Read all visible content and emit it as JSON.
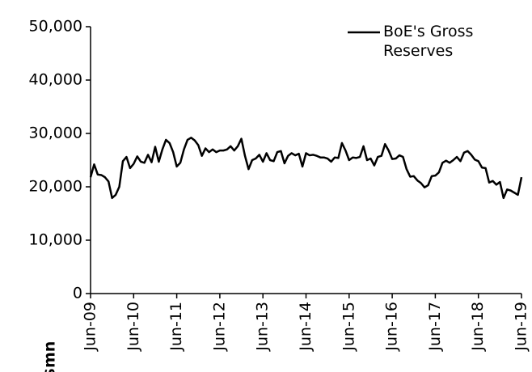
{
  "chart_data": {
    "type": "line",
    "y_label": "$mn",
    "categories": [
      "Jun-09",
      null,
      null,
      null,
      null,
      null,
      null,
      null,
      null,
      null,
      null,
      null,
      "Jun-10",
      null,
      null,
      null,
      null,
      null,
      null,
      null,
      null,
      null,
      null,
      null,
      "Jun-11",
      null,
      null,
      null,
      null,
      null,
      null,
      null,
      null,
      null,
      null,
      null,
      "Jun-12",
      null,
      null,
      null,
      null,
      null,
      null,
      null,
      null,
      null,
      null,
      null,
      "Jun-13",
      null,
      null,
      null,
      null,
      null,
      null,
      null,
      null,
      null,
      null,
      null,
      "Jun-14",
      null,
      null,
      null,
      null,
      null,
      null,
      null,
      null,
      null,
      null,
      null,
      "Jun-15",
      null,
      null,
      null,
      null,
      null,
      null,
      null,
      null,
      null,
      null,
      null,
      "Jun-16",
      null,
      null,
      null,
      null,
      null,
      null,
      null,
      null,
      null,
      null,
      null,
      "Jun-17",
      null,
      null,
      null,
      null,
      null,
      null,
      null,
      null,
      null,
      null,
      null,
      "Jun-18",
      null,
      null,
      null,
      null,
      null,
      null,
      null,
      null,
      null,
      null,
      null,
      "Jun-19"
    ],
    "series": [
      {
        "name": "BoE's Gross Reserves",
        "color": "#000000",
        "values": [
          21800,
          24200,
          22300,
          22200,
          21800,
          21000,
          17900,
          18500,
          20000,
          24800,
          25600,
          23500,
          24300,
          25700,
          24700,
          24500,
          26000,
          24600,
          27500,
          24700,
          27000,
          28800,
          28200,
          26500,
          23800,
          24500,
          27000,
          28800,
          29200,
          28700,
          27800,
          25800,
          27200,
          26500,
          27000,
          26500,
          26800,
          26800,
          27000,
          27600,
          26800,
          27600,
          29000,
          25800,
          23300,
          25000,
          25300,
          26000,
          24700,
          26300,
          25000,
          24800,
          26500,
          26700,
          24400,
          25800,
          26300,
          25900,
          26200,
          23800,
          26300,
          25900,
          26000,
          25800,
          25500,
          25500,
          25300,
          24700,
          25500,
          25400,
          28200,
          26800,
          25000,
          25500,
          25400,
          25600,
          27600,
          25000,
          25300,
          24000,
          25600,
          25800,
          28000,
          26800,
          25200,
          25300,
          25900,
          25600,
          23300,
          21900,
          22000,
          21200,
          20700,
          19900,
          20300,
          22000,
          22100,
          22700,
          24500,
          24900,
          24500,
          25000,
          25600,
          24800,
          26400,
          26700,
          26000,
          25100,
          24800,
          23600,
          23500,
          20800,
          21100,
          20400,
          20900,
          17900,
          19500,
          19300,
          18900,
          18500,
          21800
        ]
      }
    ],
    "ylim": [
      0,
      50000
    ],
    "yticks": [
      0,
      {
        "value": 10000,
        "label": "10,000"
      },
      {
        "value": 20000,
        "label": "20,000"
      },
      {
        "value": 30000,
        "label": "30,000"
      },
      {
        "value": 40000,
        "label": "40,000"
      },
      {
        "value": 50000,
        "label": "50,000"
      }
    ],
    "legend": "top-right"
  }
}
